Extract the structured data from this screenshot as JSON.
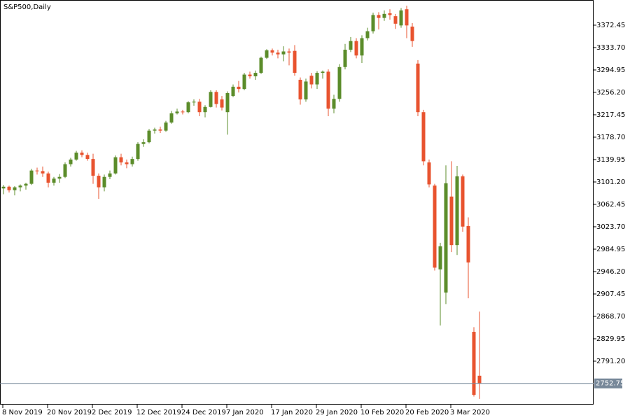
{
  "chart_data": {
    "type": "candlestick",
    "title": "S&P500,Daily",
    "up_color": "#5b8c2a",
    "down_color": "#e8532f",
    "grid": false,
    "last_price": 2752.75,
    "ylim": [
      2716.1,
      3416.0
    ],
    "yticks": [
      3372.45,
      {
        "value": 3333.7,
        "label": "3333.70"
      },
      3294.95,
      {
        "value": 3256.2,
        "label": "3256.20"
      },
      3217.45,
      {
        "value": 3178.7,
        "label": "3178.70"
      },
      3139.95,
      {
        "value": 3101.2,
        "label": "3101.20"
      },
      3062.45,
      {
        "value": 3023.7,
        "label": "3023.70"
      },
      2984.95,
      {
        "value": 2946.2,
        "label": "2946.20"
      },
      2907.45,
      {
        "value": 2868.7,
        "label": "2868.70"
      },
      2829.95,
      {
        "value": 2791.2,
        "label": "2791.20"
      }
    ],
    "categories": [
      "8 Nov 2019",
      null,
      null,
      null,
      null,
      null,
      null,
      null,
      "20 Nov 2019",
      null,
      null,
      null,
      null,
      null,
      null,
      null,
      "2 Dec 2019",
      null,
      null,
      null,
      null,
      null,
      null,
      null,
      "12 Dec 2019",
      null,
      null,
      null,
      null,
      null,
      null,
      null,
      "24 Dec 2019",
      null,
      null,
      null,
      null,
      null,
      null,
      null,
      "7 Jan 2020",
      null,
      null,
      null,
      null,
      null,
      null,
      null,
      "17 Jan 2020",
      null,
      null,
      null,
      null,
      null,
      null,
      null,
      "29 Jan 2020",
      null,
      null,
      null,
      null,
      null,
      null,
      null,
      "10 Feb 2020",
      null,
      null,
      null,
      null,
      null,
      null,
      null,
      "20 Feb 2020",
      null,
      null,
      null,
      null,
      null,
      null,
      null,
      "3 Mar 2020",
      null,
      null,
      null,
      null,
      null
    ],
    "open": [
      3090,
      3093,
      3087,
      3092,
      3095,
      3098,
      3121,
      3120,
      3116,
      3100,
      3107,
      3110,
      3132,
      3140,
      3152,
      3148,
      3141,
      3112,
      3092,
      3110,
      3116,
      3144,
      3135,
      3132,
      3141,
      3167,
      3170,
      3190,
      3192,
      3190,
      3204,
      3220,
      3223,
      3222,
      3239,
      3240,
      3222,
      3231,
      3257,
      3244,
      3222,
      3250,
      3266,
      3262,
      3287,
      3284,
      3290,
      3316,
      3329,
      3325,
      3322,
      3327,
      3328,
      3278,
      3244,
      3285,
      3270,
      3290,
      3292,
      3228,
      3245,
      3300,
      3330,
      3345,
      3320,
      3350,
      3362,
      3390,
      3385,
      3393,
      3388,
      3372,
      3400,
      3370,
      3306,
      3222,
      3135,
      3095,
      2950,
      2910,
      3076,
      2992,
      3111,
      3025,
      2842,
      2766
    ],
    "high": [
      3096,
      3095,
      3094,
      3097,
      3100,
      3124,
      3126,
      3128,
      3119,
      3110,
      3115,
      3135,
      3143,
      3155,
      3156,
      3152,
      3150,
      3116,
      3114,
      3121,
      3147,
      3150,
      3140,
      3145,
      3170,
      3175,
      3193,
      3195,
      3197,
      3207,
      3224,
      3228,
      3226,
      3241,
      3244,
      3245,
      3234,
      3260,
      3260,
      3250,
      3258,
      3270,
      3276,
      3290,
      3292,
      3294,
      3318,
      3331,
      3332,
      3330,
      3336,
      3332,
      3338,
      3282,
      3280,
      3290,
      3293,
      3294,
      3296,
      3252,
      3305,
      3340,
      3352,
      3350,
      3355,
      3368,
      3394,
      3395,
      3398,
      3400,
      3392,
      3402,
      3406,
      3376,
      3312,
      3226,
      3140,
      3098,
      2996,
      3130,
      3137,
      3129,
      3114,
      3040,
      2850,
      2877
    ],
    "low": [
      3080,
      3083,
      3078,
      3085,
      3088,
      3096,
      3114,
      3110,
      3092,
      3095,
      3100,
      3108,
      3128,
      3138,
      3144,
      3138,
      3098,
      3072,
      3085,
      3106,
      3114,
      3130,
      3125,
      3128,
      3138,
      3162,
      3168,
      3185,
      3186,
      3188,
      3202,
      3218,
      3218,
      3220,
      3233,
      3215,
      3213,
      3230,
      3230,
      3225,
      3183,
      3248,
      3256,
      3260,
      3280,
      3278,
      3288,
      3314,
      3320,
      3315,
      3310,
      3303,
      3285,
      3235,
      3240,
      3263,
      3262,
      3280,
      3215,
      3220,
      3240,
      3296,
      3326,
      3315,
      3307,
      3346,
      3358,
      3365,
      3380,
      3382,
      3366,
      3368,
      3350,
      3335,
      3215,
      3130,
      3092,
      2948,
      2853,
      2890,
      2980,
      2975,
      3015,
      2900,
      2730,
      2726
    ],
    "close": [
      3093,
      3087,
      3092,
      3095,
      3098,
      3121,
      3120,
      3116,
      3100,
      3107,
      3110,
      3132,
      3140,
      3152,
      3148,
      3141,
      3112,
      3092,
      3110,
      3116,
      3144,
      3135,
      3132,
      3141,
      3167,
      3170,
      3190,
      3192,
      3190,
      3204,
      3220,
      3223,
      3222,
      3239,
      3240,
      3222,
      3231,
      3257,
      3236,
      3230,
      3255,
      3266,
      3262,
      3287,
      3284,
      3290,
      3316,
      3329,
      3325,
      3322,
      3327,
      3325,
      3290,
      3244,
      3275,
      3270,
      3290,
      3292,
      3228,
      3245,
      3300,
      3330,
      3345,
      3320,
      3350,
      3362,
      3390,
      3385,
      3392,
      3390,
      3375,
      3398,
      3372,
      3345,
      3222,
      3137,
      3097,
      2953,
      2990,
      3099,
      2992,
      3111,
      3024,
      2962,
      2733,
      2752.75
    ]
  }
}
